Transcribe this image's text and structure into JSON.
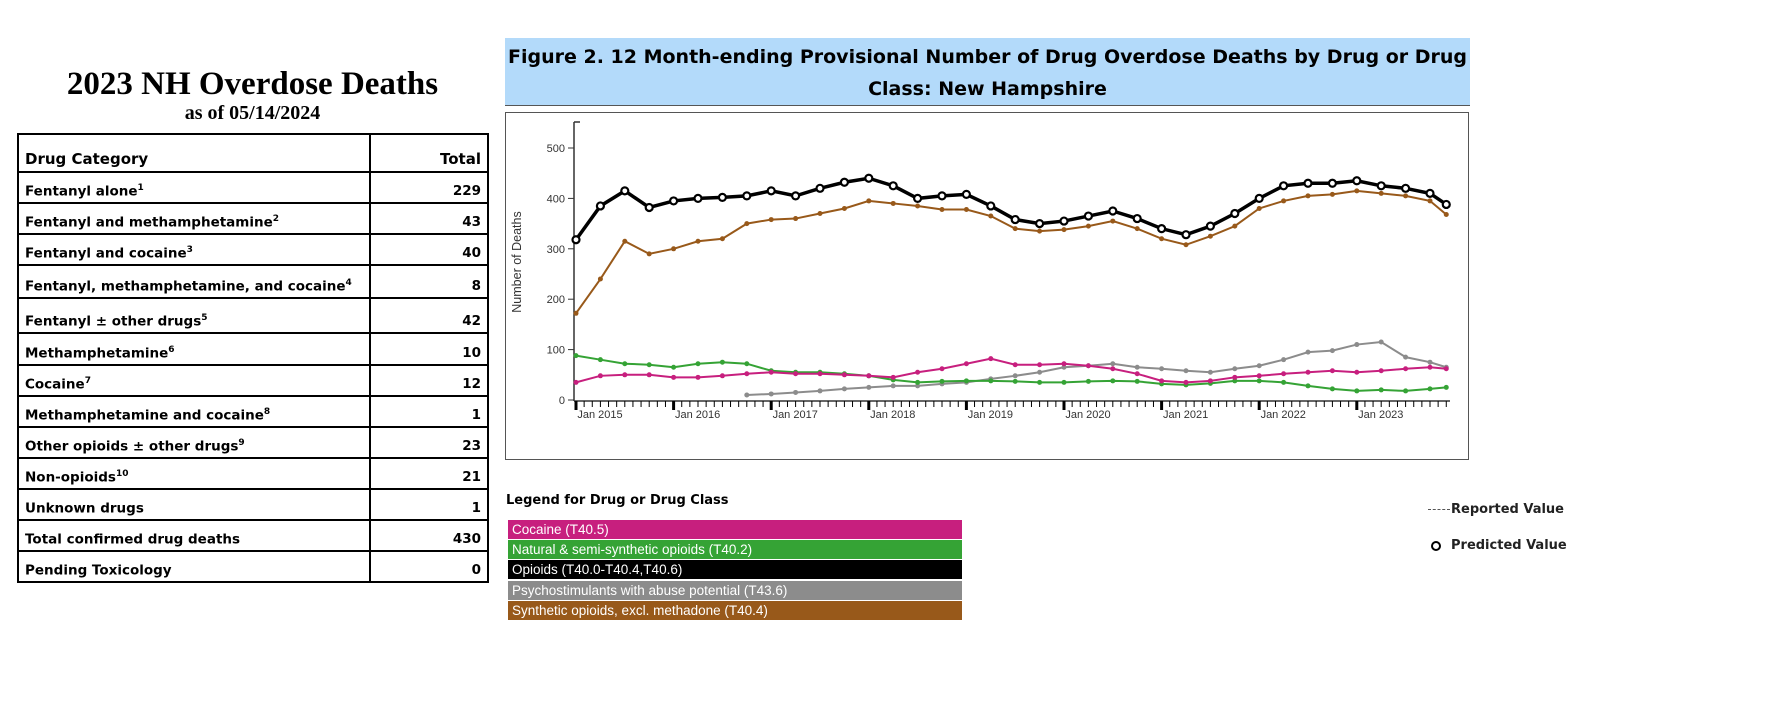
{
  "table": {
    "title": "2023 NH Overdose Deaths",
    "subtitle": "as of 05/14/2024",
    "headers": [
      "Drug Category",
      "Total"
    ],
    "rows": [
      {
        "label": "Fentanyl alone",
        "sup": "1",
        "total": "229"
      },
      {
        "label": "Fentanyl and methamphetamine",
        "sup": "2",
        "total": "43"
      },
      {
        "label": "Fentanyl and cocaine",
        "sup": "3",
        "total": "40"
      },
      {
        "label": "Fentanyl, methamphetamine, and cocaine",
        "sup": "4",
        "total": "8"
      },
      {
        "label": "Fentanyl ± other drugs",
        "sup": "5",
        "total": "42"
      },
      {
        "label": "Methamphetamine",
        "sup": "6",
        "total": "10"
      },
      {
        "label": "Cocaine",
        "sup": "7",
        "total": "12"
      },
      {
        "label": "Methamphetamine and cocaine",
        "sup": "8",
        "total": "1"
      },
      {
        "label": "Other opioids ± other drugs",
        "sup": "9",
        "total": "23"
      },
      {
        "label": "Non-opioids",
        "sup": "10",
        "total": "21"
      },
      {
        "label": "Unknown drugs",
        "sup": "",
        "total": "1"
      },
      {
        "label": "Total confirmed drug deaths",
        "sup": "",
        "total": "430"
      },
      {
        "label": "Pending Toxicology",
        "sup": "",
        "total": "0"
      }
    ]
  },
  "chart_data": {
    "type": "line",
    "title": "Figure 2. 12 Month-ending Provisional Number of Drug Overdose Deaths by Drug or Drug Class: New Hampshire",
    "ylabel": "Number of Deaths",
    "xlabel": "",
    "ylim": [
      0,
      550
    ],
    "yticks": [
      "0",
      "100",
      "200",
      "300",
      "400",
      "500"
    ],
    "xticks": [
      "Jan 2015",
      "Jan 2016",
      "Jan 2017",
      "Jan 2018",
      "Jan 2019",
      "Jan 2020",
      "Jan 2021",
      "Jan 2022",
      "Jan 2023"
    ],
    "grid": false,
    "legend_title": "Legend for Drug or Drug Class",
    "legend_placement": "bottom",
    "x": [
      "2015-01",
      "2015-04",
      "2015-07",
      "2015-10",
      "2016-01",
      "2016-04",
      "2016-07",
      "2016-10",
      "2017-01",
      "2017-04",
      "2017-07",
      "2017-10",
      "2018-01",
      "2018-04",
      "2018-07",
      "2018-10",
      "2019-01",
      "2019-04",
      "2019-07",
      "2019-10",
      "2020-01",
      "2020-04",
      "2020-07",
      "2020-10",
      "2021-01",
      "2021-04",
      "2021-07",
      "2021-10",
      "2022-01",
      "2022-04",
      "2022-07",
      "2022-10",
      "2023-01",
      "2023-04",
      "2023-07",
      "2023-10",
      "2023-12"
    ],
    "series": [
      {
        "name": "Cocaine (T40.5)",
        "color": "#c71f7e",
        "values": [
          35,
          48,
          50,
          50,
          45,
          45,
          48,
          52,
          55,
          52,
          52,
          50,
          48,
          45,
          55,
          62,
          72,
          82,
          70,
          70,
          72,
          68,
          62,
          52,
          38,
          35,
          38,
          45,
          48,
          52,
          55,
          58,
          55,
          58,
          62,
          65,
          62
        ]
      },
      {
        "name": "Natural & semi-synthetic opioids (T40.2)",
        "color": "#35a335",
        "values": [
          88,
          80,
          72,
          70,
          65,
          72,
          75,
          72,
          58,
          55,
          55,
          52,
          48,
          40,
          35,
          37,
          38,
          38,
          37,
          35,
          35,
          37,
          38,
          37,
          32,
          30,
          33,
          38,
          38,
          35,
          28,
          22,
          18,
          20,
          18,
          22,
          25
        ]
      },
      {
        "name": "Opioids (T40.0-T40.4,T40.6)",
        "color": "#000000",
        "values": [
          318,
          385,
          415,
          382,
          395,
          400,
          402,
          405,
          415,
          405,
          420,
          432,
          440,
          425,
          400,
          405,
          408,
          385,
          358,
          350,
          355,
          365,
          375,
          360,
          340,
          328,
          345,
          370,
          400,
          425,
          430,
          430,
          435,
          425,
          420,
          410,
          388
        ]
      },
      {
        "name": "Psychostimulants with abuse potential (T43.6)",
        "color": "#8c8c8c",
        "values": [
          null,
          null,
          null,
          null,
          null,
          null,
          null,
          10,
          12,
          15,
          18,
          22,
          25,
          28,
          28,
          32,
          35,
          42,
          48,
          55,
          65,
          68,
          72,
          65,
          62,
          58,
          55,
          62,
          68,
          80,
          95,
          98,
          110,
          115,
          85,
          75,
          65
        ]
      },
      {
        "name": "Synthetic opioids, excl. methadone (T40.4)",
        "color": "#98591a",
        "values": [
          172,
          240,
          315,
          290,
          300,
          315,
          320,
          350,
          358,
          360,
          370,
          380,
          395,
          390,
          385,
          378,
          378,
          365,
          340,
          335,
          338,
          345,
          355,
          340,
          320,
          308,
          325,
          345,
          380,
          395,
          405,
          408,
          415,
          410,
          405,
          395,
          368
        ]
      }
    ],
    "markers": {
      "reported": "Reported Value",
      "predicted": "Predicted Value"
    }
  }
}
